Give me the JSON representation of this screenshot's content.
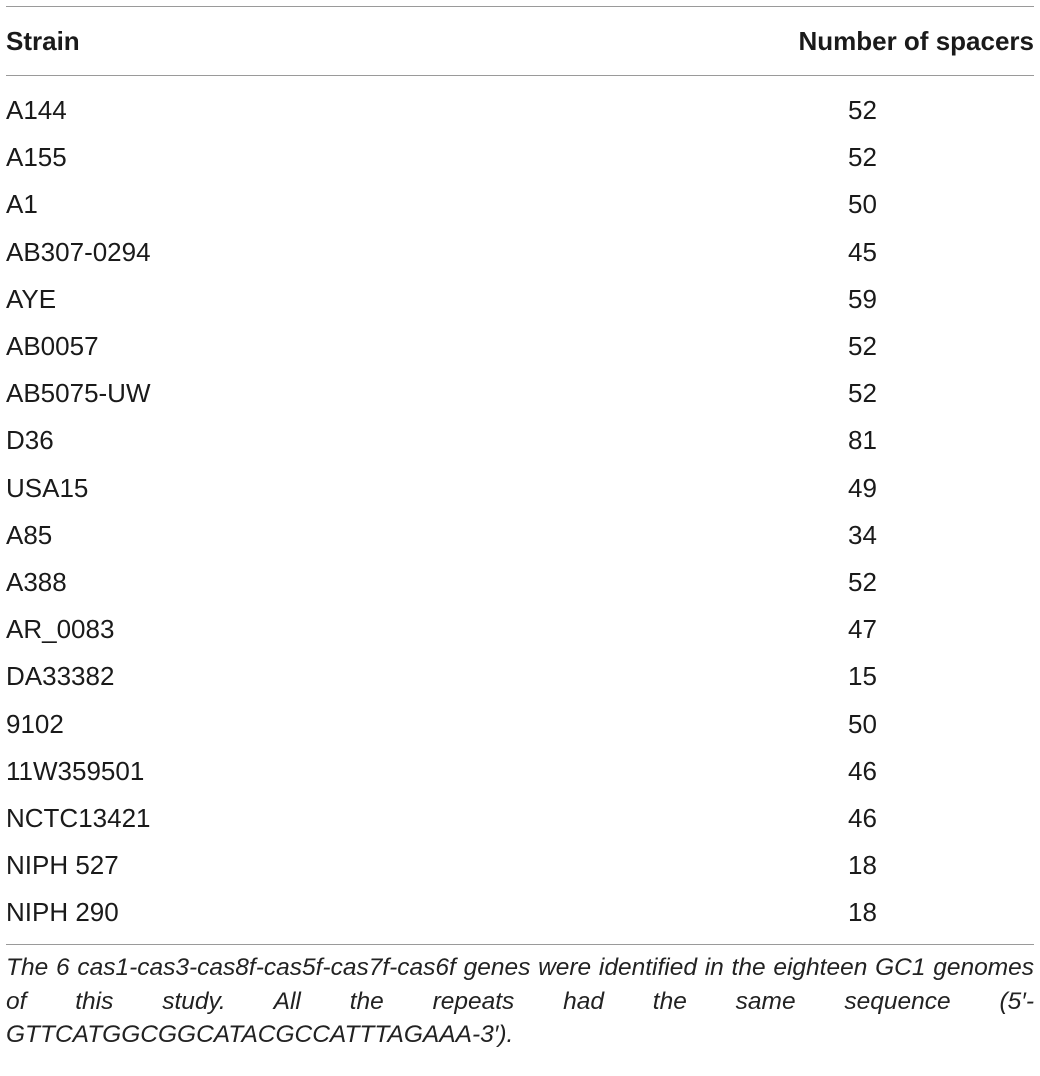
{
  "table": {
    "headers": {
      "strain": "Strain",
      "spacers": "Number of spacers"
    },
    "rows": [
      {
        "strain": "A144",
        "spacers": "52"
      },
      {
        "strain": "A155",
        "spacers": "52"
      },
      {
        "strain": "A1",
        "spacers": "50"
      },
      {
        "strain": "AB307-0294",
        "spacers": "45"
      },
      {
        "strain": "AYE",
        "spacers": "59"
      },
      {
        "strain": "AB0057",
        "spacers": "52"
      },
      {
        "strain": "AB5075-UW",
        "spacers": "52"
      },
      {
        "strain": "D36",
        "spacers": "81"
      },
      {
        "strain": "USA15",
        "spacers": "49"
      },
      {
        "strain": "A85",
        "spacers": "34"
      },
      {
        "strain": "A388",
        "spacers": "52"
      },
      {
        "strain": "AR_0083",
        "spacers": "47"
      },
      {
        "strain": "DA33382",
        "spacers": "15"
      },
      {
        "strain": "9102",
        "spacers": "50"
      },
      {
        "strain": "11W359501",
        "spacers": "46"
      },
      {
        "strain": "NCTC13421",
        "spacers": "46"
      },
      {
        "strain": "NIPH 527",
        "spacers": "18"
      },
      {
        "strain": "NIPH 290",
        "spacers": "18"
      }
    ],
    "footnote": "The 6 cas1-cas3-cas8f-cas5f-cas7f-cas6f genes were identified in the eighteen GC1 genomes of this study. All the repeats had the same sequence (5′-GTTCATGGCGGCATACGCCATTTAGAAA-3′)."
  }
}
